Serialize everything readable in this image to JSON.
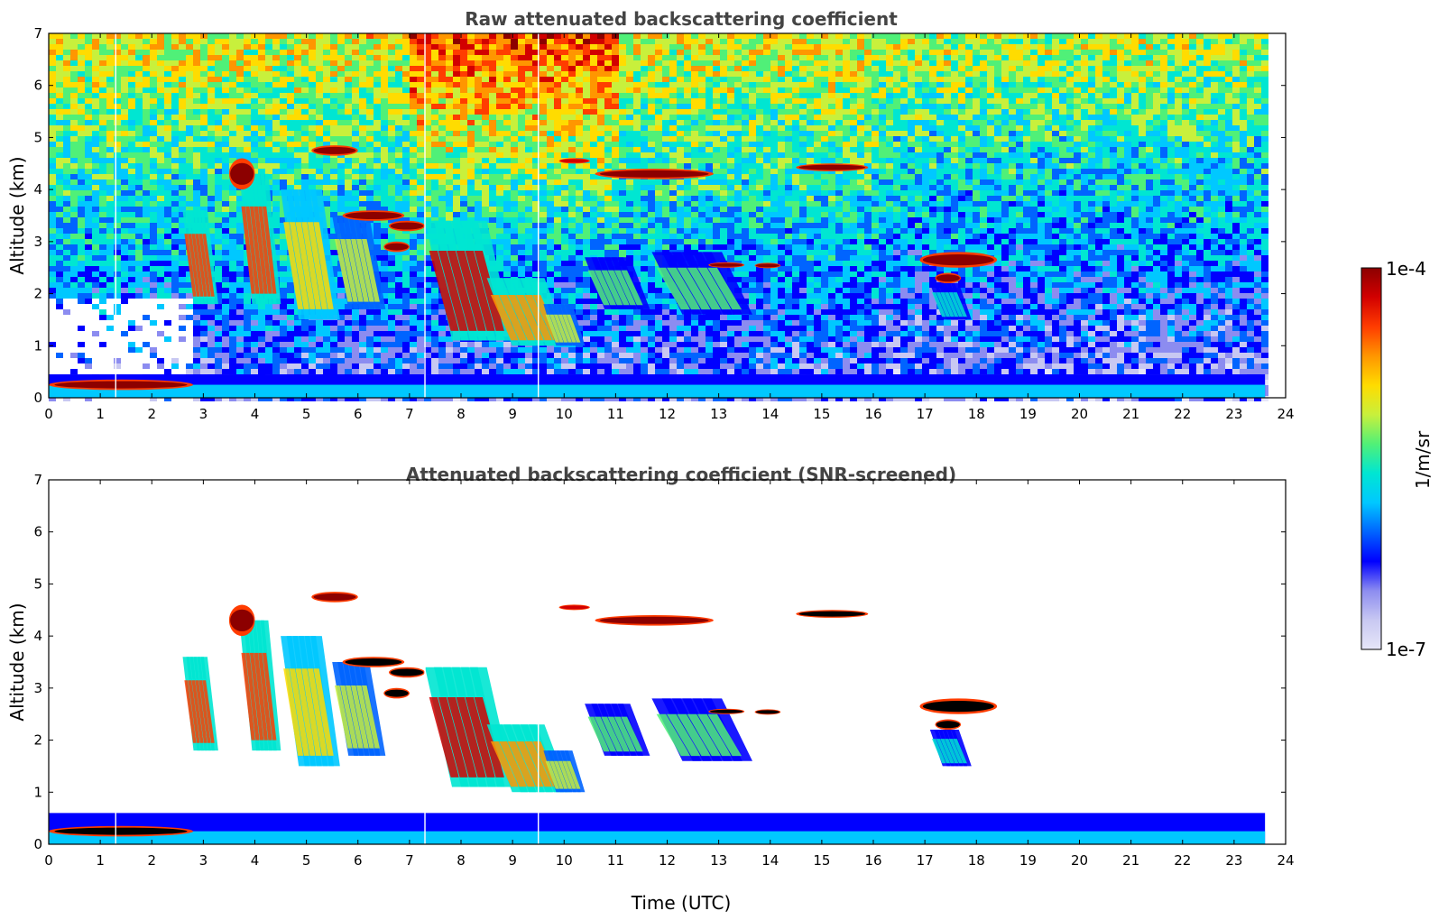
{
  "chart_data": [
    {
      "type": "heatmap",
      "title": "Raw attenuated backscattering coefficient",
      "xlabel": "",
      "ylabel": "Altitude (km)",
      "xlim": [
        0,
        24
      ],
      "ylim": [
        0,
        7
      ],
      "xticks": [
        "0",
        "1",
        "2",
        "3",
        "4",
        "5",
        "6",
        "7",
        "8",
        "9",
        "10",
        "11",
        "12",
        "13",
        "14",
        "15",
        "16",
        "17",
        "18",
        "19",
        "20",
        "21",
        "22",
        "23",
        "24"
      ],
      "yticks": [
        "0",
        "1",
        "2",
        "3",
        "4",
        "5",
        "6",
        "7"
      ],
      "data_end_time": 23.6,
      "noise": true,
      "features": [
        {
          "kind": "cirrus-streak",
          "t": [
            2.6,
            3.2
          ],
          "alt": [
            1.8,
            3.6
          ],
          "v": 0.82
        },
        {
          "kind": "cirrus-streak",
          "t": [
            3.7,
            4.4
          ],
          "alt": [
            1.8,
            4.3
          ],
          "v": 0.82
        },
        {
          "kind": "cirrus-streak",
          "t": [
            4.5,
            5.5
          ],
          "alt": [
            1.5,
            4.0
          ],
          "v": 0.7
        },
        {
          "kind": "cirrus-streak",
          "t": [
            5.5,
            6.4
          ],
          "alt": [
            1.7,
            3.5
          ],
          "v": 0.62
        },
        {
          "kind": "cirrus-streak",
          "t": [
            7.3,
            8.8
          ],
          "alt": [
            1.1,
            3.4
          ],
          "v": 0.86
        },
        {
          "kind": "cirrus-streak",
          "t": [
            8.5,
            9.9
          ],
          "alt": [
            1.0,
            2.3
          ],
          "v": 0.78
        },
        {
          "kind": "cirrus-streak",
          "t": [
            9.6,
            10.3
          ],
          "alt": [
            1.0,
            1.8
          ],
          "v": 0.6
        },
        {
          "kind": "cirrus-faint",
          "t": [
            10.4,
            11.5
          ],
          "alt": [
            1.7,
            2.7
          ],
          "v": 0.5
        },
        {
          "kind": "cirrus-faint",
          "t": [
            11.7,
            13.4
          ],
          "alt": [
            1.6,
            2.8
          ],
          "v": 0.5
        },
        {
          "kind": "cloud-layer",
          "t": [
            3.5,
            4.0
          ],
          "alt": [
            4.0,
            4.6
          ],
          "v": 0.93
        },
        {
          "kind": "cloud-layer",
          "t": [
            5.1,
            6.0
          ],
          "alt": [
            4.65,
            4.85
          ],
          "v": 0.97
        },
        {
          "kind": "cloud-layer",
          "t": [
            5.7,
            6.9
          ],
          "alt": [
            3.4,
            3.6
          ],
          "v": 0.99
        },
        {
          "kind": "cloud-layer",
          "t": [
            6.6,
            7.3
          ],
          "alt": [
            3.2,
            3.4
          ],
          "v": 0.99
        },
        {
          "kind": "cloud-layer",
          "t": [
            6.5,
            7.0
          ],
          "alt": [
            2.8,
            3.0
          ],
          "v": 0.99
        },
        {
          "kind": "cloud-layer",
          "t": [
            10.6,
            12.9
          ],
          "alt": [
            4.2,
            4.4
          ],
          "v": 0.99
        },
        {
          "kind": "cloud-layer",
          "t": [
            9.9,
            10.5
          ],
          "alt": [
            4.5,
            4.6
          ],
          "v": 0.9
        },
        {
          "kind": "cloud-layer",
          "t": [
            14.5,
            15.9
          ],
          "alt": [
            4.35,
            4.5
          ],
          "v": 0.97
        },
        {
          "kind": "cloud-layer",
          "t": [
            12.8,
            13.5
          ],
          "alt": [
            2.5,
            2.6
          ],
          "v": 0.99
        },
        {
          "kind": "cloud-layer",
          "t": [
            13.7,
            14.2
          ],
          "alt": [
            2.5,
            2.58
          ],
          "v": 0.99
        },
        {
          "kind": "cloud-layer",
          "t": [
            16.9,
            18.4
          ],
          "alt": [
            2.5,
            2.8
          ],
          "v": 0.99
        },
        {
          "kind": "cloud-layer",
          "t": [
            17.2,
            17.7
          ],
          "alt": [
            2.2,
            2.4
          ],
          "v": 0.99
        },
        {
          "kind": "cirrus-faint",
          "t": [
            17.1,
            17.8
          ],
          "alt": [
            1.5,
            2.2
          ],
          "v": 0.45
        },
        {
          "kind": "cloud-layer",
          "t": [
            0.0,
            2.8
          ],
          "alt": [
            0.15,
            0.35
          ],
          "v": 0.99
        }
      ]
    },
    {
      "type": "heatmap",
      "title": "Attenuated backscattering coefficient (SNR-screened)",
      "xlabel": "Time (UTC)",
      "ylabel": "Altitude (km)",
      "xlim": [
        0,
        24
      ],
      "ylim": [
        0,
        7
      ],
      "xticks": [
        "0",
        "1",
        "2",
        "3",
        "4",
        "5",
        "6",
        "7",
        "8",
        "9",
        "10",
        "11",
        "12",
        "13",
        "14",
        "15",
        "16",
        "17",
        "18",
        "19",
        "20",
        "21",
        "22",
        "23",
        "24"
      ],
      "yticks": [
        "0",
        "1",
        "2",
        "3",
        "4",
        "5",
        "6",
        "7"
      ],
      "data_end_time": 23.6,
      "noise": false,
      "saturated_color": "#000000",
      "features": [
        {
          "kind": "cirrus-streak",
          "t": [
            2.6,
            3.2
          ],
          "alt": [
            1.8,
            3.6
          ],
          "v": 0.82
        },
        {
          "kind": "cirrus-streak",
          "t": [
            3.7,
            4.4
          ],
          "alt": [
            1.8,
            4.3
          ],
          "v": 0.82
        },
        {
          "kind": "cirrus-streak",
          "t": [
            4.5,
            5.5
          ],
          "alt": [
            1.5,
            4.0
          ],
          "v": 0.7
        },
        {
          "kind": "cirrus-streak",
          "t": [
            5.5,
            6.4
          ],
          "alt": [
            1.7,
            3.5
          ],
          "v": 0.62
        },
        {
          "kind": "cirrus-streak",
          "t": [
            7.3,
            8.8
          ],
          "alt": [
            1.1,
            3.4
          ],
          "v": 0.86
        },
        {
          "kind": "cirrus-streak",
          "t": [
            8.5,
            9.9
          ],
          "alt": [
            1.0,
            2.3
          ],
          "v": 0.78
        },
        {
          "kind": "cirrus-streak",
          "t": [
            9.6,
            10.3
          ],
          "alt": [
            1.0,
            1.8
          ],
          "v": 0.6
        },
        {
          "kind": "cirrus-faint",
          "t": [
            10.4,
            11.5
          ],
          "alt": [
            1.7,
            2.7
          ],
          "v": 0.5
        },
        {
          "kind": "cirrus-faint",
          "t": [
            11.7,
            13.4
          ],
          "alt": [
            1.6,
            2.8
          ],
          "v": 0.5
        },
        {
          "kind": "cloud-layer",
          "t": [
            3.5,
            4.0
          ],
          "alt": [
            4.0,
            4.6
          ],
          "v": 0.93
        },
        {
          "kind": "cloud-layer",
          "t": [
            5.1,
            6.0
          ],
          "alt": [
            4.65,
            4.85
          ],
          "v": 0.97
        },
        {
          "kind": "cloud-layer",
          "t": [
            5.7,
            6.9
          ],
          "alt": [
            3.4,
            3.6
          ],
          "v": 1.0
        },
        {
          "kind": "cloud-layer",
          "t": [
            6.6,
            7.3
          ],
          "alt": [
            3.2,
            3.4
          ],
          "v": 1.0
        },
        {
          "kind": "cloud-layer",
          "t": [
            6.5,
            7.0
          ],
          "alt": [
            2.8,
            3.0
          ],
          "v": 1.0
        },
        {
          "kind": "cloud-layer",
          "t": [
            10.6,
            12.9
          ],
          "alt": [
            4.2,
            4.4
          ],
          "v": 0.99
        },
        {
          "kind": "cloud-layer",
          "t": [
            9.9,
            10.5
          ],
          "alt": [
            4.5,
            4.6
          ],
          "v": 0.9
        },
        {
          "kind": "cloud-layer",
          "t": [
            14.5,
            15.9
          ],
          "alt": [
            4.35,
            4.5
          ],
          "v": 1.0
        },
        {
          "kind": "cloud-layer",
          "t": [
            12.8,
            13.5
          ],
          "alt": [
            2.5,
            2.6
          ],
          "v": 1.0
        },
        {
          "kind": "cloud-layer",
          "t": [
            13.7,
            14.2
          ],
          "alt": [
            2.5,
            2.58
          ],
          "v": 1.0
        },
        {
          "kind": "cloud-layer",
          "t": [
            16.9,
            18.4
          ],
          "alt": [
            2.5,
            2.8
          ],
          "v": 1.0
        },
        {
          "kind": "cloud-layer",
          "t": [
            17.2,
            17.7
          ],
          "alt": [
            2.2,
            2.4
          ],
          "v": 1.0
        },
        {
          "kind": "cirrus-faint",
          "t": [
            17.1,
            17.8
          ],
          "alt": [
            1.5,
            2.2
          ],
          "v": 0.45
        },
        {
          "kind": "cloud-layer",
          "t": [
            0.0,
            2.8
          ],
          "alt": [
            0.15,
            0.35
          ],
          "v": 1.0
        }
      ]
    }
  ],
  "colorbar": {
    "label": "1/m/sr",
    "max_label": "1e-4",
    "min_label": "1e-7",
    "colors": [
      "#e6e6f8",
      "#c8c8f2",
      "#8c8cf0",
      "#0000ff",
      "#0064ff",
      "#00c8ff",
      "#00e6d2",
      "#50f078",
      "#c8f03c",
      "#ffdc00",
      "#ff9600",
      "#ff3c00",
      "#d20000",
      "#8c0000"
    ]
  }
}
